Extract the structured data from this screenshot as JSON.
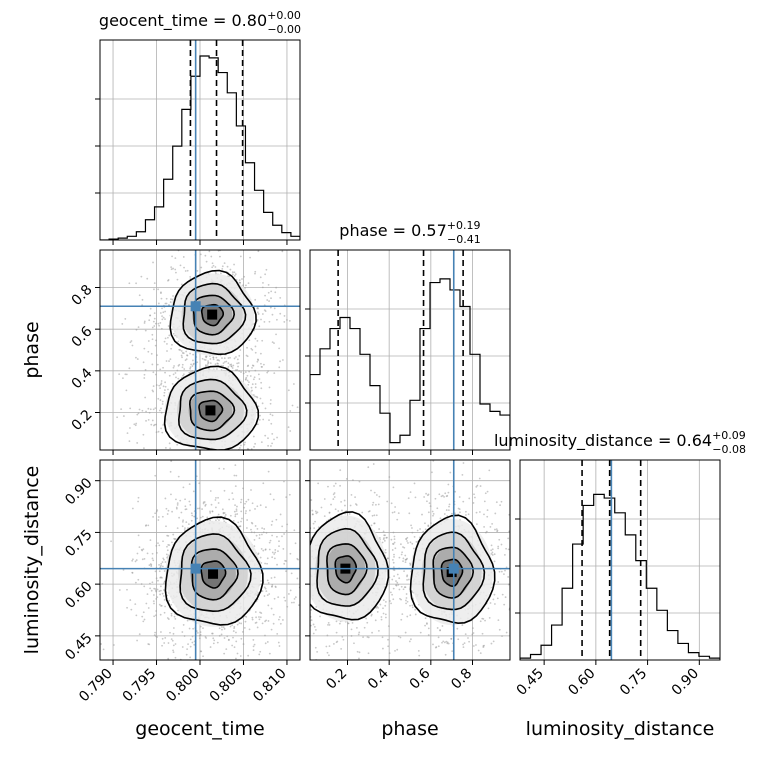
{
  "chart_data": {
    "type": "corner",
    "parameters": [
      {
        "name": "geocent_time",
        "range": [
          0.7885,
          0.8115
        ],
        "ticks": [
          0.79,
          0.795,
          0.8,
          0.805,
          0.81
        ],
        "tick_labels": [
          "0.790",
          "0.795",
          "0.800",
          "0.805",
          "0.810"
        ],
        "truth": 0.7995,
        "quantiles": [
          0.7989,
          0.8019,
          0.8049
        ],
        "title_value": "0.80",
        "title_plus": "+0.00",
        "title_minus": "−0.00"
      },
      {
        "name": "phase",
        "range": [
          0.02,
          0.98
        ],
        "ticks": [
          0.2,
          0.4,
          0.6,
          0.8
        ],
        "tick_labels": [
          "0.2",
          "0.4",
          "0.6",
          "0.8"
        ],
        "truth": 0.71,
        "quantiles": [
          0.155,
          0.565,
          0.755
        ],
        "title_value": "0.57",
        "title_plus": "+0.19",
        "title_minus": "−0.41"
      },
      {
        "name": "luminosity_distance",
        "range": [
          0.38,
          0.96
        ],
        "ticks": [
          0.45,
          0.6,
          0.75,
          0.9
        ],
        "tick_labels": [
          "0.45",
          "0.60",
          "0.75",
          "0.90"
        ],
        "truth": 0.645,
        "quantiles": [
          0.56,
          0.64,
          0.73
        ],
        "title_value": "0.64",
        "title_plus": "+0.09",
        "title_minus": "−0.08"
      }
    ],
    "histograms": [
      [
        0.0,
        0.005,
        0.01,
        0.02,
        0.045,
        0.11,
        0.18,
        0.33,
        0.51,
        0.71,
        0.89,
        1.0,
        0.99,
        0.91,
        0.8,
        0.62,
        0.42,
        0.27,
        0.15,
        0.08,
        0.04,
        0.02
      ],
      [
        0.41,
        0.55,
        0.66,
        0.72,
        0.66,
        0.52,
        0.35,
        0.2,
        0.04,
        0.08,
        0.27,
        0.66,
        0.91,
        0.93,
        0.87,
        0.78,
        0.52,
        0.25,
        0.21,
        0.19
      ],
      [
        0.01,
        0.03,
        0.08,
        0.19,
        0.39,
        0.63,
        0.84,
        0.9,
        0.88,
        0.8,
        0.68,
        0.54,
        0.39,
        0.27,
        0.16,
        0.09,
        0.04,
        0.02,
        0.01
      ]
    ],
    "joint_modes": [
      {
        "pair": [
          "geocent_time",
          "phase"
        ],
        "modes": [
          {
            "x": 0.8014,
            "y": 0.67,
            "sx": 0.0022,
            "sy": 0.09
          },
          {
            "x": 0.8012,
            "y": 0.21,
            "sx": 0.0024,
            "sy": 0.09
          }
        ]
      },
      {
        "pair": [
          "geocent_time",
          "luminosity_distance"
        ],
        "modes": [
          {
            "x": 0.8015,
            "y": 0.63,
            "sx": 0.0025,
            "sy": 0.07
          }
        ]
      },
      {
        "pair": [
          "phase",
          "luminosity_distance"
        ],
        "modes": [
          {
            "x": 0.19,
            "y": 0.645,
            "sx": 0.09,
            "sy": 0.07
          },
          {
            "x": 0.7,
            "y": 0.635,
            "sx": 0.09,
            "sy": 0.07
          }
        ]
      }
    ],
    "grid": true,
    "truth_color": "#4682b4"
  }
}
